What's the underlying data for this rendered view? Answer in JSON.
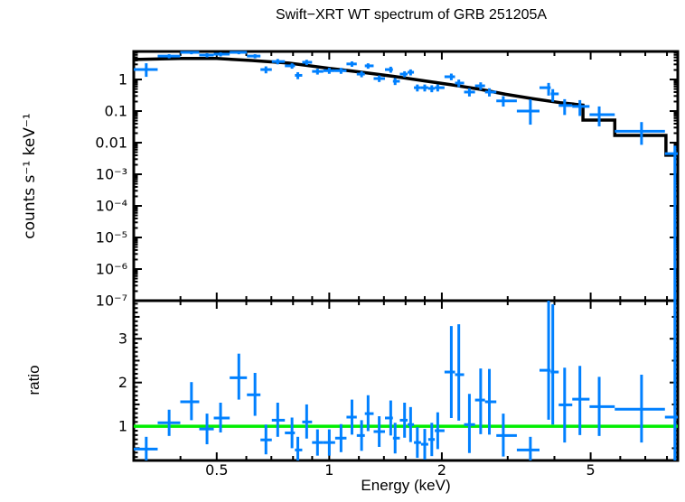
{
  "chart_data": {
    "type": "scatter",
    "title": "Swift−XRT WT spectrum of GRB 251205A",
    "grid": false,
    "legend": "none",
    "x": {
      "scale": "log",
      "label": "Energy (keV)",
      "lim": [
        0.3,
        8.55
      ],
      "ticks": [
        {
          "v": 0.5,
          "label": "0.5"
        },
        {
          "v": 1,
          "label": "1"
        },
        {
          "v": 2,
          "label": "2"
        },
        {
          "v": 5,
          "label": "5"
        }
      ],
      "minor_ticks": [
        0.4,
        0.6,
        0.7,
        0.8,
        0.9,
        1.2,
        1.4,
        1.6,
        1.8,
        3,
        4,
        6,
        7,
        8
      ]
    },
    "bin_edges_overrides": {
      "0": 0.298,
      "39": 5.8,
      "40": 7.9,
      "41": 8.55
    },
    "panels": [
      {
        "name": "spectrum",
        "ylabel": "counts s⁻¹ keV⁻¹",
        "yscale": "log",
        "ylim": [
          1e-07,
          7.7
        ],
        "yticks": [
          {
            "v": 1,
            "label": "1"
          },
          {
            "v": 0.1,
            "label": "0.1"
          },
          {
            "v": 0.01,
            "label": "0.01"
          },
          {
            "v": 0.001,
            "label": "10⁻³"
          },
          {
            "v": 0.0001,
            "label": "10⁻⁴"
          },
          {
            "v": 1e-05,
            "label": "10⁻⁵"
          },
          {
            "v": 1e-06,
            "label": "10⁻⁶"
          },
          {
            "v": 1e-07,
            "label": "10⁻⁷"
          }
        ],
        "series_note": "points: [energy_keV, counts_per_s_per_keV, err_up_dex, err_down_dex]; 99 = error bar clipped at panel edge",
        "points": [
          [
            0.324,
            2.06,
            0.2,
            0.23
          ],
          [
            0.373,
            5.5,
            0.06,
            0.07
          ],
          [
            0.428,
            7.2,
            0.05,
            0.06
          ],
          [
            0.471,
            5.9,
            0.06,
            0.07
          ],
          [
            0.512,
            6.3,
            0.06,
            0.07
          ],
          [
            0.573,
            7.2,
            0.05,
            0.06
          ],
          [
            0.633,
            5.5,
            0.06,
            0.07
          ],
          [
            0.677,
            2.06,
            0.1,
            0.12
          ],
          [
            0.728,
            3.7,
            0.08,
            0.09
          ],
          [
            0.795,
            2.7,
            0.08,
            0.09
          ],
          [
            0.824,
            1.35,
            0.1,
            0.12
          ],
          [
            0.87,
            3.5,
            0.08,
            0.09
          ],
          [
            0.93,
            1.8,
            0.09,
            0.1
          ],
          [
            1.0,
            1.9,
            0.09,
            0.1
          ],
          [
            1.075,
            1.9,
            0.09,
            0.1
          ],
          [
            1.15,
            3.1,
            0.08,
            0.09
          ],
          [
            1.22,
            1.48,
            0.09,
            0.1
          ],
          [
            1.27,
            2.7,
            0.08,
            0.09
          ],
          [
            1.36,
            1.07,
            0.1,
            0.11
          ],
          [
            1.46,
            2.06,
            0.09,
            0.1
          ],
          [
            1.5,
            0.88,
            0.1,
            0.12
          ],
          [
            1.59,
            1.48,
            0.09,
            0.1
          ],
          [
            1.65,
            1.69,
            0.09,
            0.1
          ],
          [
            1.72,
            0.55,
            0.1,
            0.12
          ],
          [
            1.8,
            0.55,
            0.1,
            0.12
          ],
          [
            1.88,
            0.52,
            0.1,
            0.12
          ],
          [
            1.95,
            0.55,
            0.1,
            0.12
          ],
          [
            2.12,
            1.22,
            0.1,
            0.11
          ],
          [
            2.22,
            0.77,
            0.11,
            0.13
          ],
          [
            2.37,
            0.4,
            0.12,
            0.14
          ],
          [
            2.54,
            0.63,
            0.11,
            0.13
          ],
          [
            2.68,
            0.4,
            0.12,
            0.14
          ],
          [
            2.92,
            0.21,
            0.15,
            0.18
          ],
          [
            3.45,
            0.1,
            0.37,
            0.43
          ],
          [
            3.86,
            0.55,
            0.15,
            0.25
          ],
          [
            3.96,
            0.35,
            0.15,
            0.25
          ],
          [
            4.26,
            0.15,
            0.2,
            0.3
          ],
          [
            4.68,
            0.14,
            0.2,
            0.3
          ],
          [
            5.27,
            0.077,
            0.26,
            0.37
          ],
          [
            6.84,
            0.023,
            0.29,
            0.43
          ],
          [
            8.4,
            0.0045,
            0.25,
            99
          ]
        ],
        "model_note": "fitted model stepped line: [energy_keV, counts_per_s_per_keV]",
        "model": [
          [
            0.3,
            4.3
          ],
          [
            0.4,
            4.6
          ],
          [
            0.5,
            4.6
          ],
          [
            0.62,
            4.0
          ],
          [
            0.78,
            3.3
          ],
          [
            1.0,
            2.25
          ],
          [
            1.22,
            1.7
          ],
          [
            1.49,
            1.25
          ],
          [
            1.8,
            0.9
          ],
          [
            2.12,
            0.68
          ],
          [
            2.51,
            0.5
          ],
          [
            2.96,
            0.34
          ],
          [
            3.51,
            0.245
          ],
          [
            4.14,
            0.185
          ],
          [
            4.77,
            0.155
          ],
          [
            4.77,
            0.052
          ],
          [
            5.8,
            0.052
          ],
          [
            5.8,
            0.017
          ],
          [
            7.95,
            0.017
          ],
          [
            7.95,
            0.004
          ],
          [
            8.55,
            0.004
          ]
        ]
      },
      {
        "name": "ratio",
        "ylabel": "ratio",
        "yscale": "linear",
        "ylim": [
          0.22,
          3.87
        ],
        "yticks": [
          {
            "v": 1,
            "label": "1"
          },
          {
            "v": 2,
            "label": "2"
          },
          {
            "v": 3,
            "label": "3"
          }
        ],
        "reference_line": 1,
        "series_note": "points: [energy_keV, data/model ratio, err_up, err_down]; 99 = error bar clipped at panel edge",
        "points": [
          [
            0.324,
            0.48,
            0.28,
            0.26
          ],
          [
            0.373,
            1.08,
            0.3,
            0.3
          ],
          [
            0.428,
            1.56,
            0.45,
            0.42
          ],
          [
            0.471,
            0.94,
            0.35,
            0.35
          ],
          [
            0.512,
            1.19,
            0.35,
            0.33
          ],
          [
            0.573,
            2.11,
            0.55,
            0.5
          ],
          [
            0.633,
            1.72,
            0.5,
            0.48
          ],
          [
            0.677,
            0.69,
            0.35,
            0.33
          ],
          [
            0.728,
            1.14,
            0.4,
            0.38
          ],
          [
            0.795,
            0.85,
            0.35,
            0.35
          ],
          [
            0.824,
            0.46,
            0.3,
            0.26
          ],
          [
            0.87,
            1.1,
            0.4,
            0.38
          ],
          [
            0.93,
            0.63,
            0.3,
            0.3
          ],
          [
            1.0,
            0.63,
            0.3,
            0.3
          ],
          [
            1.075,
            0.73,
            0.32,
            0.32
          ],
          [
            1.15,
            1.21,
            0.4,
            0.4
          ],
          [
            1.22,
            0.79,
            0.35,
            0.35
          ],
          [
            1.27,
            1.29,
            0.42,
            0.4
          ],
          [
            1.36,
            0.88,
            0.35,
            0.35
          ],
          [
            1.46,
            1.19,
            0.4,
            0.4
          ],
          [
            1.5,
            0.73,
            0.35,
            0.35
          ],
          [
            1.59,
            1.14,
            0.4,
            0.4
          ],
          [
            1.65,
            1.04,
            0.4,
            0.4
          ],
          [
            1.72,
            0.63,
            0.35,
            0.35
          ],
          [
            1.8,
            0.59,
            0.35,
            0.35
          ],
          [
            1.88,
            0.7,
            0.38,
            0.38
          ],
          [
            1.95,
            0.9,
            0.42,
            0.42
          ],
          [
            2.12,
            2.24,
            1.05,
            1.05
          ],
          [
            2.22,
            2.18,
            1.15,
            1.05
          ],
          [
            2.37,
            1.04,
            0.7,
            0.65
          ],
          [
            2.54,
            1.6,
            0.72,
            0.78
          ],
          [
            2.68,
            1.56,
            0.75,
            0.75
          ],
          [
            2.92,
            0.79,
            0.5,
            0.48
          ],
          [
            3.45,
            0.46,
            0.3,
            0.24
          ],
          [
            3.86,
            2.28,
            1.6,
            1.13
          ],
          [
            3.96,
            2.24,
            1.55,
            1.2
          ],
          [
            4.26,
            1.49,
            0.85,
            0.86
          ],
          [
            4.68,
            1.62,
            0.76,
            0.82
          ],
          [
            5.27,
            1.45,
            0.68,
            0.67
          ],
          [
            6.84,
            1.39,
            0.79,
            0.76
          ],
          [
            8.4,
            1.21,
            99,
            99
          ]
        ]
      }
    ],
    "colors": {
      "background": "#ffffff",
      "axis": "#000000",
      "data": "#0080ff",
      "model": "#000000",
      "ratio_line": "#00ee00"
    }
  }
}
